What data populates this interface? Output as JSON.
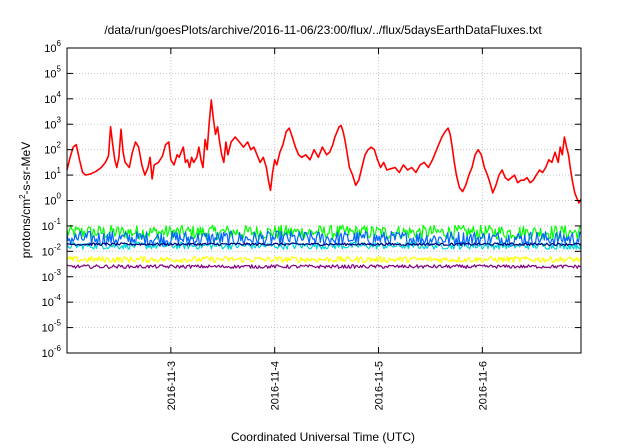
{
  "chart_data": {
    "type": "line",
    "title": "/data/run/goesPlots/archive/2016-11-06/23:00/flux/../flux/5daysEarthDataFluxes.txt",
    "xlabel": "Coordinated Universal Time (UTC)",
    "ylabel": "protons/cm²-s-sr-MeV",
    "ylabel_base": "protons/cm",
    "ylabel_sup": "2",
    "ylabel_rest": "-s-sr-MeV",
    "yscale": "log",
    "ylim_exp": [
      -6,
      6
    ],
    "y_ticks": [
      {
        "exp": "-6"
      },
      {
        "exp": "-5"
      },
      {
        "exp": "-4"
      },
      {
        "exp": "-3"
      },
      {
        "exp": "-2"
      },
      {
        "exp": "-1"
      },
      {
        "exp": "0"
      },
      {
        "exp": "1"
      },
      {
        "exp": "2"
      },
      {
        "exp": "3"
      },
      {
        "exp": "4"
      },
      {
        "exp": "5"
      },
      {
        "exp": "6"
      }
    ],
    "y_tick_base": "10",
    "xlim_days": [
      2.0,
      6.95
    ],
    "x_ticks": [
      {
        "label": "2016-11-3",
        "day": 3
      },
      {
        "label": "2016-11-4",
        "day": 4
      },
      {
        "label": "2016-11-5",
        "day": 5
      },
      {
        "label": "2016-11-6",
        "day": 6
      }
    ],
    "grid": true,
    "series": [
      {
        "color": "#ff0000",
        "style": "main",
        "points": [
          [
            2.0,
            1.2
          ],
          [
            2.03,
            1.7
          ],
          [
            2.06,
            2.1
          ],
          [
            2.09,
            2.2
          ],
          [
            2.12,
            1.6
          ],
          [
            2.15,
            1.1
          ],
          [
            2.18,
            1.0
          ],
          [
            2.23,
            1.05
          ],
          [
            2.28,
            1.15
          ],
          [
            2.33,
            1.3
          ],
          [
            2.37,
            1.5
          ],
          [
            2.4,
            1.75
          ],
          [
            2.42,
            2.9
          ],
          [
            2.44,
            2.2
          ],
          [
            2.46,
            1.6
          ],
          [
            2.48,
            1.3
          ],
          [
            2.5,
            1.7
          ],
          [
            2.52,
            2.8
          ],
          [
            2.54,
            1.9
          ],
          [
            2.56,
            1.5
          ],
          [
            2.6,
            1.3
          ],
          [
            2.63,
            1.9
          ],
          [
            2.66,
            2.3
          ],
          [
            2.69,
            2.1
          ],
          [
            2.72,
            1.4
          ],
          [
            2.75,
            1.0
          ],
          [
            2.78,
            1.3
          ],
          [
            2.8,
            1.7
          ],
          [
            2.82,
            0.85
          ],
          [
            2.84,
            1.4
          ],
          [
            2.88,
            1.5
          ],
          [
            2.92,
            1.75
          ],
          [
            2.95,
            2.2
          ],
          [
            2.98,
            2.3
          ],
          [
            3.0,
            1.6
          ],
          [
            3.03,
            1.4
          ],
          [
            3.06,
            1.8
          ],
          [
            3.08,
            1.7
          ],
          [
            3.1,
            1.9
          ],
          [
            3.12,
            2.1
          ],
          [
            3.14,
            1.5
          ],
          [
            3.16,
            1.6
          ],
          [
            3.18,
            1.3
          ],
          [
            3.2,
            1.7
          ],
          [
            3.22,
            1.5
          ],
          [
            3.25,
            1.7
          ],
          [
            3.27,
            2.1
          ],
          [
            3.29,
            1.6
          ],
          [
            3.31,
            1.3
          ],
          [
            3.33,
            2.4
          ],
          [
            3.35,
            2.0
          ],
          [
            3.37,
            3.1
          ],
          [
            3.39,
            3.95
          ],
          [
            3.41,
            3.2
          ],
          [
            3.43,
            2.6
          ],
          [
            3.45,
            2.9
          ],
          [
            3.47,
            2.3
          ],
          [
            3.49,
            1.8
          ],
          [
            3.51,
            1.5
          ],
          [
            3.53,
            2.3
          ],
          [
            3.55,
            1.8
          ],
          [
            3.58,
            2.3
          ],
          [
            3.62,
            2.5
          ],
          [
            3.66,
            2.3
          ],
          [
            3.7,
            2.1
          ],
          [
            3.74,
            2.3
          ],
          [
            3.77,
            2.0
          ],
          [
            3.8,
            2.1
          ],
          [
            3.83,
            1.8
          ],
          [
            3.86,
            1.5
          ],
          [
            3.89,
            1.7
          ],
          [
            3.92,
            1.3
          ],
          [
            3.94,
            0.8
          ],
          [
            3.96,
            0.4
          ],
          [
            3.98,
            1.1
          ],
          [
            4.0,
            1.6
          ],
          [
            4.02,
            1.4
          ],
          [
            4.05,
            1.9
          ],
          [
            4.08,
            2.2
          ],
          [
            4.11,
            2.7
          ],
          [
            4.14,
            2.85
          ],
          [
            4.17,
            2.5
          ],
          [
            4.2,
            2.1
          ],
          [
            4.23,
            1.8
          ],
          [
            4.26,
            1.7
          ],
          [
            4.3,
            1.8
          ],
          [
            4.34,
            1.6
          ],
          [
            4.38,
            2.0
          ],
          [
            4.42,
            1.7
          ],
          [
            4.46,
            2.1
          ],
          [
            4.5,
            1.8
          ],
          [
            4.53,
            1.9
          ],
          [
            4.56,
            2.2
          ],
          [
            4.58,
            2.5
          ],
          [
            4.6,
            2.7
          ],
          [
            4.62,
            2.9
          ],
          [
            4.64,
            2.95
          ],
          [
            4.66,
            2.7
          ],
          [
            4.68,
            2.3
          ],
          [
            4.7,
            1.8
          ],
          [
            4.72,
            1.3
          ],
          [
            4.75,
            1.0
          ],
          [
            4.78,
            0.6
          ],
          [
            4.81,
            0.8
          ],
          [
            4.84,
            1.3
          ],
          [
            4.87,
            1.8
          ],
          [
            4.9,
            2.0
          ],
          [
            4.93,
            2.1
          ],
          [
            4.96,
            2.0
          ],
          [
            4.99,
            1.6
          ],
          [
            5.02,
            1.3
          ],
          [
            5.05,
            1.5
          ],
          [
            5.08,
            1.2
          ],
          [
            5.12,
            1.25
          ],
          [
            5.16,
            1.3
          ],
          [
            5.2,
            1.1
          ],
          [
            5.24,
            1.4
          ],
          [
            5.28,
            1.2
          ],
          [
            5.32,
            1.3
          ],
          [
            5.36,
            1.1
          ],
          [
            5.4,
            1.4
          ],
          [
            5.44,
            1.5
          ],
          [
            5.48,
            1.3
          ],
          [
            5.52,
            1.6
          ],
          [
            5.55,
            1.9
          ],
          [
            5.58,
            2.2
          ],
          [
            5.61,
            2.5
          ],
          [
            5.64,
            2.7
          ],
          [
            5.67,
            2.85
          ],
          [
            5.69,
            2.6
          ],
          [
            5.71,
            2.1
          ],
          [
            5.73,
            1.5
          ],
          [
            5.75,
            1.0
          ],
          [
            5.78,
            0.5
          ],
          [
            5.81,
            0.35
          ],
          [
            5.84,
            0.6
          ],
          [
            5.87,
            1.0
          ],
          [
            5.9,
            1.3
          ],
          [
            5.93,
            1.8
          ],
          [
            5.96,
            2.0
          ],
          [
            5.99,
            1.8
          ],
          [
            6.02,
            1.3
          ],
          [
            6.05,
            1.0
          ],
          [
            6.08,
            0.6
          ],
          [
            6.1,
            0.3
          ],
          [
            6.13,
            0.6
          ],
          [
            6.16,
            1.0
          ],
          [
            6.19,
            1.2
          ],
          [
            6.22,
            0.9
          ],
          [
            6.25,
            0.8
          ],
          [
            6.28,
            0.9
          ],
          [
            6.31,
            1.0
          ],
          [
            6.34,
            0.7
          ],
          [
            6.37,
            0.8
          ],
          [
            6.4,
            0.8
          ],
          [
            6.43,
            0.9
          ],
          [
            6.46,
            0.7
          ],
          [
            6.49,
            0.8
          ],
          [
            6.52,
            1.0
          ],
          [
            6.55,
            1.2
          ],
          [
            6.58,
            1.1
          ],
          [
            6.61,
            1.3
          ],
          [
            6.64,
            1.6
          ],
          [
            6.67,
            1.5
          ],
          [
            6.7,
            1.9
          ],
          [
            6.73,
            1.5
          ],
          [
            6.75,
            2.1
          ],
          [
            6.77,
            1.8
          ],
          [
            6.79,
            2.5
          ],
          [
            6.81,
            2.1
          ],
          [
            6.83,
            1.8
          ],
          [
            6.85,
            1.2
          ],
          [
            6.87,
            0.7
          ],
          [
            6.89,
            0.3
          ],
          [
            6.91,
            0.1
          ],
          [
            6.93,
            -0.1
          ],
          [
            6.95,
            0.05
          ]
        ]
      },
      {
        "color": "#00ff00",
        "style": "noisy",
        "center": -1.25,
        "amp": 0.28
      },
      {
        "color": "#0066ff",
        "style": "noisy",
        "center": -1.5,
        "amp": 0.3
      },
      {
        "color": "#00d6d6",
        "style": "noisy",
        "center": -1.78,
        "amp": 0.14
      },
      {
        "color": "#000080",
        "style": "noisy",
        "center": -1.72,
        "amp": 0.05
      },
      {
        "color": "#ffff00",
        "style": "noisy",
        "center": -2.32,
        "amp": 0.12
      },
      {
        "color": "#800080",
        "style": "noisy",
        "center": -2.6,
        "amp": 0.07
      }
    ]
  }
}
